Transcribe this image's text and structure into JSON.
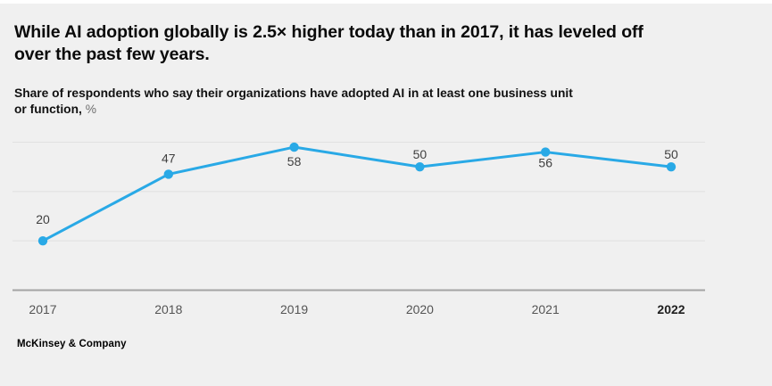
{
  "header": {
    "title_lines": [
      "While AI adoption globally is 2.5× higher today than in 2017, it has leveled off",
      "over the past few years."
    ],
    "subtitle_lines": [
      "Share of respondents who say their organizations have adopted AI in at least one business unit",
      "or function,"
    ],
    "subtitle_unit": "%"
  },
  "footer": {
    "wordmark": "McKinsey & Company"
  },
  "colors": {
    "background": "#f0f0f0",
    "accent_line": "#29a9e6",
    "gridline": "#e0e0e0",
    "axis": "#a3a3a3",
    "value_label": "#3f3f3f",
    "year_label": "#545454",
    "year_label_current": "#1f1f1f"
  },
  "chart_data": {
    "type": "line",
    "title": "Share of respondents who say their organizations have adopted AI in at least one business unit or function, %",
    "categories": [
      "2017",
      "2018",
      "2019",
      "2020",
      "2021",
      "2022"
    ],
    "values": [
      20,
      47,
      58,
      50,
      56,
      50
    ],
    "ylim": [
      0,
      60
    ],
    "gridline_values": [
      20,
      40,
      60
    ],
    "grid": "horizontal-only",
    "y_tick_labels_shown": false,
    "value_labels_shown": true,
    "value_label_dy": [
      -24,
      -18,
      16,
      -14,
      12,
      -14
    ],
    "bold_last_category": true,
    "legend": "none"
  }
}
